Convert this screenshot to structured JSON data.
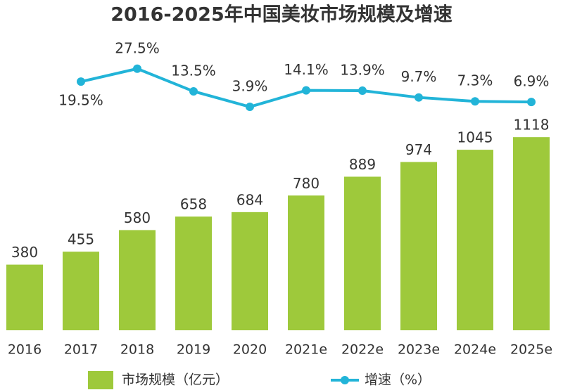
{
  "chart_data": {
    "type": "bar",
    "title": "2016-2025年中国美妆市场规模及增速",
    "categories": [
      "2016",
      "2017",
      "2018",
      "2019",
      "2020",
      "2021e",
      "2022e",
      "2023e",
      "2024e",
      "2025e"
    ],
    "series": [
      {
        "name": "市场规模（亿元）",
        "type": "bar",
        "color": "#9ec93b",
        "values": [
          380,
          455,
          580,
          658,
          684,
          780,
          889,
          974,
          1045,
          1118
        ]
      },
      {
        "name": "增速（%）",
        "type": "line",
        "axis": "y2",
        "color": "#22b4d8",
        "values": [
          null,
          19.5,
          27.5,
          13.5,
          3.9,
          14.1,
          13.9,
          9.7,
          7.3,
          6.9
        ],
        "value_labels": [
          null,
          "19.5%",
          "27.5%",
          "13.5%",
          "3.9%",
          "14.1%",
          "13.9%",
          "9.7%",
          "7.3%",
          "6.9%"
        ]
      }
    ],
    "ylim": [
      0,
      1200
    ],
    "y2lim": [
      0,
      30
    ],
    "legend": "bottom"
  }
}
